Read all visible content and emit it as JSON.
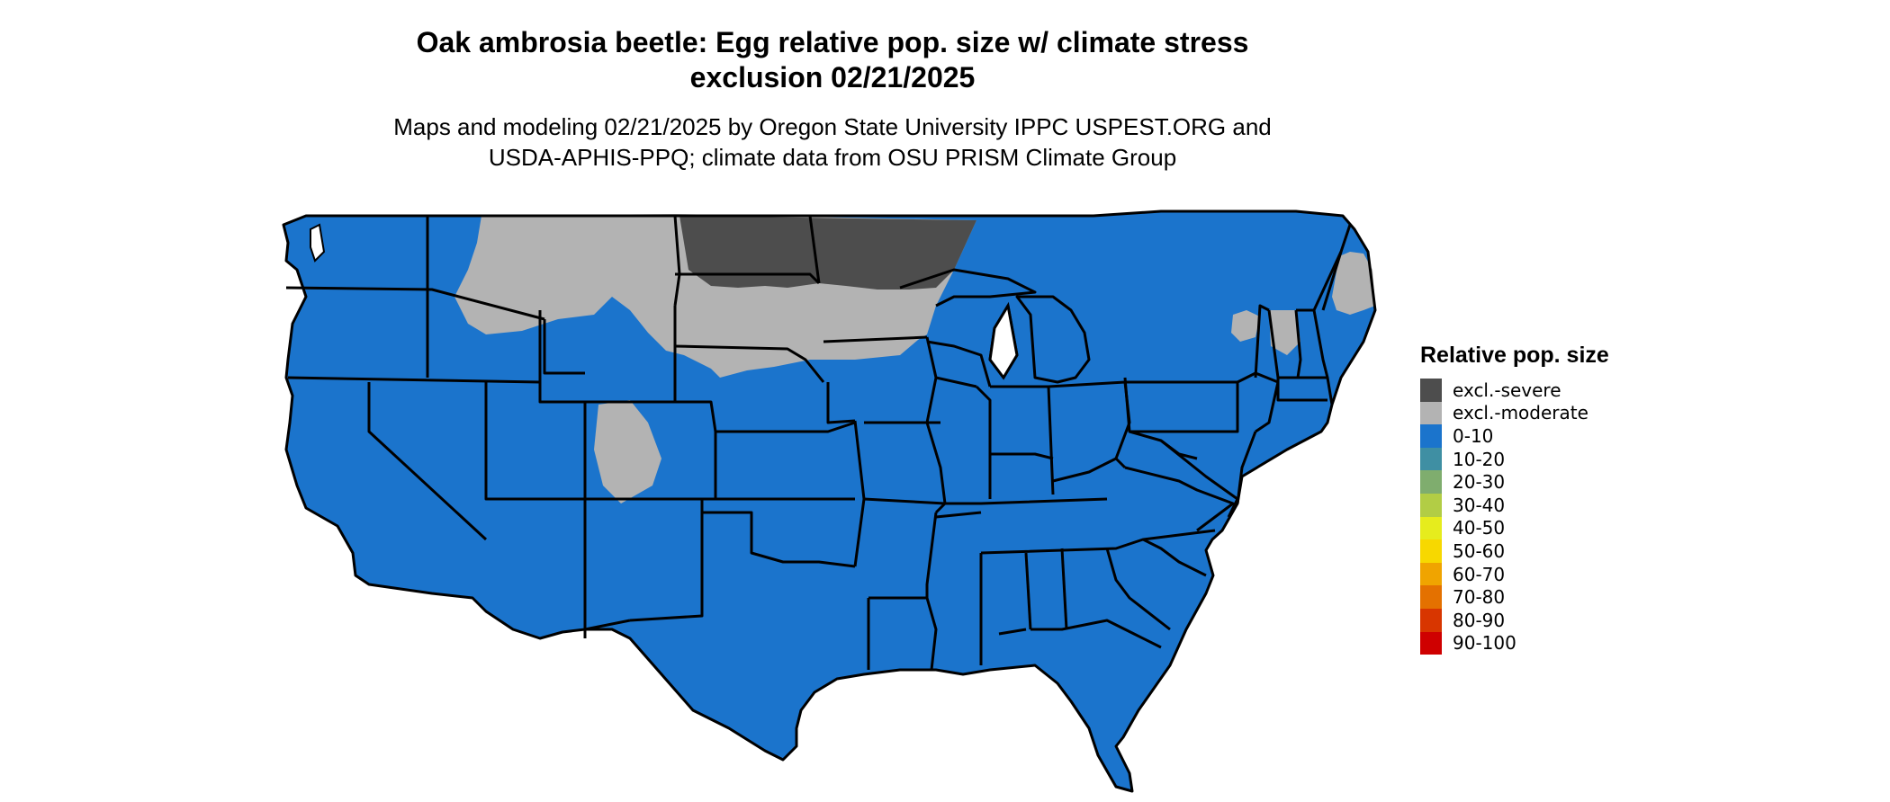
{
  "title": {
    "line1": "Oak ambrosia beetle: Egg relative pop. size w/ climate stress",
    "line2": "exclusion 02/21/2025"
  },
  "subtitle": {
    "line1": "Maps and modeling 02/21/2025 by Oregon State University IPPC USPEST.ORG and",
    "line2": "USDA-APHIS-PPQ; climate data from OSU PRISM Climate Group"
  },
  "map": {
    "region": "Contiguous United States",
    "predominant_class": "0-10",
    "colors": {
      "excl_severe": "#4d4d4d",
      "excl_moderate": "#b3b3b3",
      "class_0_10": "#1b74cc",
      "border": "#000000"
    }
  },
  "legend": {
    "title": "Relative pop. size",
    "items": [
      {
        "label": "excl.-severe",
        "color": "#4d4d4d"
      },
      {
        "label": "excl.-moderate",
        "color": "#b3b3b3"
      },
      {
        "label": "0-10",
        "color": "#1b74cc"
      },
      {
        "label": "10-20",
        "color": "#3f8fa3"
      },
      {
        "label": "20-30",
        "color": "#7fad6e"
      },
      {
        "label": "30-40",
        "color": "#b2cd45"
      },
      {
        "label": "40-50",
        "color": "#e6ec1d"
      },
      {
        "label": "50-60",
        "color": "#f7d800"
      },
      {
        "label": "60-70",
        "color": "#f0a400"
      },
      {
        "label": "70-80",
        "color": "#e47100"
      },
      {
        "label": "80-90",
        "color": "#d83600"
      },
      {
        "label": "90-100",
        "color": "#cf0000"
      }
    ]
  }
}
